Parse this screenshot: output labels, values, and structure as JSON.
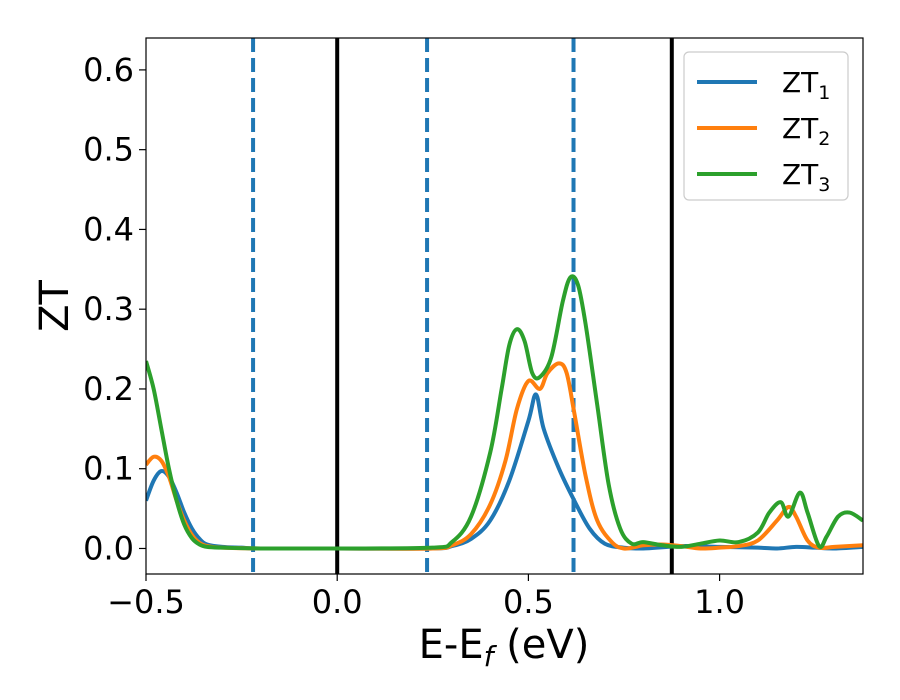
{
  "chart_data": {
    "type": "line",
    "xlabel": {
      "main": "E-E",
      "sub": "f",
      "suffix": " (eV)"
    },
    "ylabel": "ZT",
    "xlim": [
      -0.5,
      1.375
    ],
    "ylim": [
      -0.032,
      0.64
    ],
    "xticks": [
      {
        "value": -0.5,
        "label": "−0.5"
      },
      {
        "value": 0.0,
        "label": "0.0"
      },
      {
        "value": 0.5,
        "label": "0.5"
      },
      {
        "value": 1.0,
        "label": "1.0"
      }
    ],
    "yticks": [
      {
        "value": 0.0,
        "label": "0.0"
      },
      {
        "value": 0.1,
        "label": "0.1"
      },
      {
        "value": 0.2,
        "label": "0.2"
      },
      {
        "value": 0.3,
        "label": "0.3"
      },
      {
        "value": 0.4,
        "label": "0.4"
      },
      {
        "value": 0.5,
        "label": "0.5"
      },
      {
        "value": 0.6,
        "label": "0.6"
      }
    ],
    "grid": false,
    "legend_position": "top-right",
    "vlines": [
      {
        "x": -0.22,
        "style": "dashed",
        "color": "#1f77b4"
      },
      {
        "x": 0.0,
        "style": "solid",
        "color": "#000000"
      },
      {
        "x": 0.235,
        "style": "dashed",
        "color": "#1f77b4"
      },
      {
        "x": 0.618,
        "style": "dashed",
        "color": "#1f77b4"
      },
      {
        "x": 0.875,
        "style": "solid",
        "color": "#000000"
      }
    ],
    "series": [
      {
        "name": "ZT",
        "sub": "1",
        "color": "#1f77b4",
        "points": [
          [
            -0.5,
            0.06
          ],
          [
            -0.48,
            0.085
          ],
          [
            -0.46,
            0.097
          ],
          [
            -0.44,
            0.09
          ],
          [
            -0.42,
            0.07
          ],
          [
            -0.4,
            0.045
          ],
          [
            -0.38,
            0.025
          ],
          [
            -0.36,
            0.012
          ],
          [
            -0.34,
            0.005
          ],
          [
            -0.3,
            0.002
          ],
          [
            -0.25,
            0.001
          ],
          [
            -0.2,
            0.0
          ],
          [
            0.0,
            0.0
          ],
          [
            0.25,
            0.0
          ],
          [
            0.3,
            0.003
          ],
          [
            0.35,
            0.012
          ],
          [
            0.4,
            0.035
          ],
          [
            0.45,
            0.085
          ],
          [
            0.5,
            0.16
          ],
          [
            0.52,
            0.193
          ],
          [
            0.54,
            0.15
          ],
          [
            0.58,
            0.1
          ],
          [
            0.62,
            0.06
          ],
          [
            0.66,
            0.025
          ],
          [
            0.7,
            0.006
          ],
          [
            0.75,
            0.001
          ],
          [
            0.8,
            0.0
          ],
          [
            0.9,
            0.003
          ],
          [
            1.0,
            0.002
          ],
          [
            1.1,
            0.001
          ],
          [
            1.15,
            0.0
          ],
          [
            1.2,
            0.002
          ],
          [
            1.25,
            0.001
          ],
          [
            1.3,
            0.0
          ],
          [
            1.375,
            0.002
          ]
        ]
      },
      {
        "name": "ZT",
        "sub": "2",
        "color": "#ff7f0e",
        "points": [
          [
            -0.5,
            0.105
          ],
          [
            -0.48,
            0.115
          ],
          [
            -0.46,
            0.11
          ],
          [
            -0.44,
            0.09
          ],
          [
            -0.42,
            0.06
          ],
          [
            -0.4,
            0.035
          ],
          [
            -0.38,
            0.017
          ],
          [
            -0.36,
            0.007
          ],
          [
            -0.34,
            0.003
          ],
          [
            -0.3,
            0.001
          ],
          [
            -0.2,
            0.0
          ],
          [
            0.0,
            0.0
          ],
          [
            0.25,
            0.0
          ],
          [
            0.3,
            0.004
          ],
          [
            0.35,
            0.018
          ],
          [
            0.4,
            0.055
          ],
          [
            0.44,
            0.11
          ],
          [
            0.47,
            0.175
          ],
          [
            0.5,
            0.21
          ],
          [
            0.53,
            0.2
          ],
          [
            0.55,
            0.22
          ],
          [
            0.58,
            0.232
          ],
          [
            0.6,
            0.22
          ],
          [
            0.62,
            0.17
          ],
          [
            0.65,
            0.09
          ],
          [
            0.68,
            0.035
          ],
          [
            0.72,
            0.007
          ],
          [
            0.75,
            0.0
          ],
          [
            0.78,
            0.002
          ],
          [
            0.8,
            0.004
          ],
          [
            0.85,
            0.005
          ],
          [
            0.9,
            0.003
          ],
          [
            0.95,
            0.0
          ],
          [
            1.0,
            0.001
          ],
          [
            1.05,
            0.003
          ],
          [
            1.1,
            0.01
          ],
          [
            1.15,
            0.035
          ],
          [
            1.18,
            0.052
          ],
          [
            1.2,
            0.04
          ],
          [
            1.23,
            0.01
          ],
          [
            1.26,
            0.001
          ],
          [
            1.3,
            0.002
          ],
          [
            1.375,
            0.004
          ]
        ]
      },
      {
        "name": "ZT",
        "sub": "3",
        "color": "#2ca02c",
        "points": [
          [
            -0.5,
            0.235
          ],
          [
            -0.48,
            0.2
          ],
          [
            -0.46,
            0.15
          ],
          [
            -0.44,
            0.1
          ],
          [
            -0.42,
            0.06
          ],
          [
            -0.4,
            0.03
          ],
          [
            -0.38,
            0.013
          ],
          [
            -0.36,
            0.005
          ],
          [
            -0.34,
            0.002
          ],
          [
            -0.3,
            0.001
          ],
          [
            -0.2,
            0.0
          ],
          [
            0.0,
            0.0
          ],
          [
            0.25,
            0.001
          ],
          [
            0.3,
            0.008
          ],
          [
            0.35,
            0.04
          ],
          [
            0.4,
            0.12
          ],
          [
            0.43,
            0.2
          ],
          [
            0.45,
            0.255
          ],
          [
            0.47,
            0.275
          ],
          [
            0.49,
            0.26
          ],
          [
            0.51,
            0.22
          ],
          [
            0.53,
            0.215
          ],
          [
            0.56,
            0.24
          ],
          [
            0.59,
            0.31
          ],
          [
            0.61,
            0.34
          ],
          [
            0.63,
            0.33
          ],
          [
            0.65,
            0.28
          ],
          [
            0.68,
            0.18
          ],
          [
            0.71,
            0.08
          ],
          [
            0.74,
            0.025
          ],
          [
            0.77,
            0.006
          ],
          [
            0.8,
            0.008
          ],
          [
            0.85,
            0.004
          ],
          [
            0.9,
            0.002
          ],
          [
            0.95,
            0.006
          ],
          [
            1.0,
            0.01
          ],
          [
            1.05,
            0.008
          ],
          [
            1.1,
            0.02
          ],
          [
            1.13,
            0.045
          ],
          [
            1.16,
            0.058
          ],
          [
            1.18,
            0.04
          ],
          [
            1.21,
            0.07
          ],
          [
            1.23,
            0.045
          ],
          [
            1.26,
            0.003
          ],
          [
            1.28,
            0.015
          ],
          [
            1.31,
            0.04
          ],
          [
            1.34,
            0.045
          ],
          [
            1.375,
            0.035
          ]
        ]
      }
    ]
  }
}
